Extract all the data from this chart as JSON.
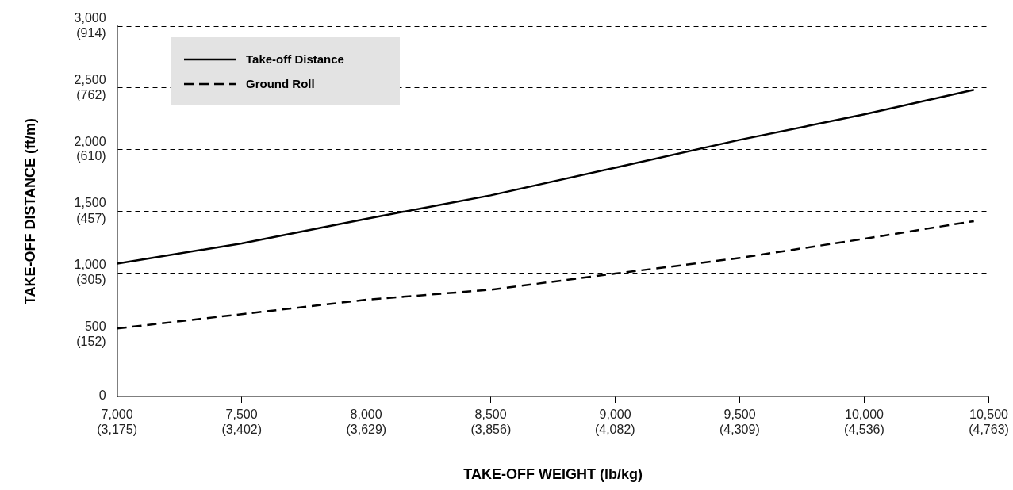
{
  "chart_data": {
    "type": "line",
    "xlabel": "TAKE-OFF WEIGHT (lb/kg)",
    "ylabel": "TAKE-OFF DISTANCE (ft/m)",
    "x": [
      7000,
      7500,
      8000,
      8500,
      9000,
      9500,
      10000,
      10440
    ],
    "series": [
      {
        "name": "Take-off Distance",
        "color": "#000000",
        "line_style": "solid",
        "values": [
          1076,
          1241,
          1440,
          1630,
          1854,
          2080,
          2286,
          2486
        ]
      },
      {
        "name": "Ground Roll",
        "color": "#000000",
        "line_style": "dashed",
        "values": [
          551,
          667,
          784,
          865,
          996,
          1123,
          1278,
          1421
        ]
      }
    ],
    "xlim": [
      7000,
      10500
    ],
    "xticks": [
      {
        "value": 7000,
        "label": "7,000"
      },
      {
        "value": 7500,
        "label": "7,500"
      },
      {
        "value": 8000,
        "label": "8,000"
      },
      {
        "value": 8500,
        "label": "8,500"
      },
      {
        "value": 9000,
        "label": "9,000"
      },
      {
        "value": 9500,
        "label": "9,500"
      },
      {
        "value": 10000,
        "label": "10,000"
      },
      {
        "value": 10500,
        "label": "10,500"
      }
    ],
    "x2lim": [
      3175,
      4763
    ],
    "x2ticks": [
      {
        "value": 3175,
        "label": "(3,175)"
      },
      {
        "value": 3402,
        "label": "(3,402)"
      },
      {
        "value": 3629,
        "label": "(3,629)"
      },
      {
        "value": 3856,
        "label": "(3,856)"
      },
      {
        "value": 4082,
        "label": "(4,082)"
      },
      {
        "value": 4309,
        "label": "(4,309)"
      },
      {
        "value": 4536,
        "label": "(4,536)"
      },
      {
        "value": 4763,
        "label": "(4,763)"
      }
    ],
    "ylim": [
      0,
      3000
    ],
    "yticks": [
      0,
      500,
      {
        "value": 1000,
        "label": "1,000"
      },
      {
        "value": 1500,
        "label": "1,500"
      },
      {
        "value": 2000,
        "label": "2,000"
      },
      {
        "value": 2500,
        "label": "2,500"
      },
      {
        "value": 3000,
        "label": "3,000"
      }
    ],
    "y2lim": [
      0,
      914
    ],
    "y2ticks": [
      {
        "value": 152,
        "label": "(152)"
      },
      {
        "value": 305,
        "label": "(305)"
      },
      {
        "value": 457,
        "label": "(457)"
      },
      {
        "value": 610,
        "label": "(610)"
      },
      {
        "value": 762,
        "label": "(762)"
      },
      {
        "value": 914,
        "label": "(914)"
      }
    ],
    "grid": "y",
    "legend": "top left",
    "marker": "none"
  }
}
